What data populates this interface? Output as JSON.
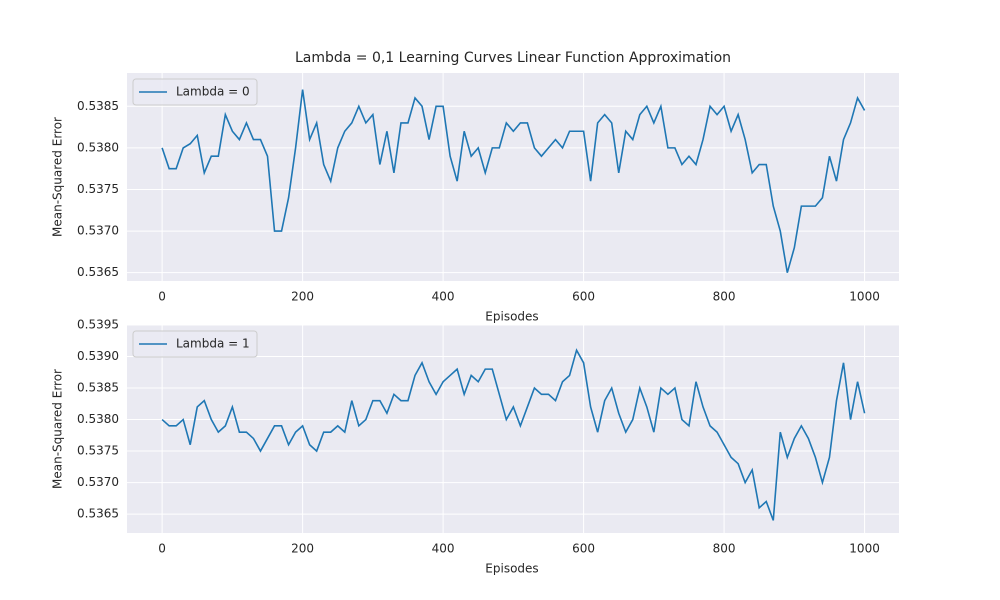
{
  "chart_data": [
    {
      "type": "line",
      "title": "Lambda = 0,1 Learning Curves Linear Function Approximation",
      "xlabel": "Episodes",
      "ylabel": "Mean-Squared Error",
      "grid": true,
      "legend": "upper left",
      "xlim": [
        -50,
        1049
      ],
      "ylim": [
        0.5364,
        0.5389
      ],
      "xticks": [
        0,
        200,
        400,
        600,
        800,
        1000
      ],
      "yticks": [
        0.5365,
        {
          "value": 0.537,
          "label": "0.5370"
        },
        0.5375,
        {
          "value": 0.538,
          "label": "0.5380"
        },
        0.5385
      ],
      "x": [
        0,
        10,
        20,
        30,
        40,
        50,
        60,
        70,
        80,
        90,
        100,
        110,
        120,
        130,
        140,
        150,
        160,
        170,
        180,
        190,
        200,
        210,
        220,
        230,
        240,
        250,
        260,
        270,
        280,
        290,
        300,
        310,
        320,
        330,
        340,
        350,
        360,
        370,
        380,
        390,
        400,
        410,
        420,
        430,
        440,
        450,
        460,
        470,
        480,
        490,
        500,
        510,
        520,
        530,
        540,
        550,
        560,
        570,
        580,
        590,
        600,
        610,
        620,
        630,
        640,
        650,
        660,
        670,
        680,
        690,
        700,
        710,
        720,
        730,
        740,
        750,
        760,
        770,
        780,
        790,
        800,
        810,
        820,
        830,
        840,
        850,
        860,
        870,
        880,
        890,
        900,
        910,
        920,
        930,
        940,
        950,
        960,
        970,
        980,
        990,
        1000
      ],
      "series": [
        {
          "name": "Lambda = 0",
          "color": "#1f77b4",
          "values": [
            0.538,
            0.53775,
            0.53775,
            0.538,
            0.53805,
            0.53815,
            0.5377,
            0.5379,
            0.5379,
            0.5384,
            0.5382,
            0.5381,
            0.5383,
            0.5381,
            0.5381,
            0.5379,
            0.537,
            0.537,
            0.5374,
            0.538,
            0.5387,
            0.5381,
            0.5383,
            0.5378,
            0.5376,
            0.538,
            0.5382,
            0.5383,
            0.5385,
            0.5383,
            0.5384,
            0.5378,
            0.5382,
            0.5377,
            0.5383,
            0.5383,
            0.5386,
            0.5385,
            0.5381,
            0.5385,
            0.5385,
            0.5379,
            0.5376,
            0.5382,
            0.5379,
            0.538,
            0.5377,
            0.538,
            0.538,
            0.5383,
            0.5382,
            0.5383,
            0.5383,
            0.538,
            0.5379,
            0.538,
            0.5381,
            0.538,
            0.5382,
            0.5382,
            0.5382,
            0.5376,
            0.5383,
            0.5384,
            0.5383,
            0.5377,
            0.5382,
            0.5381,
            0.5384,
            0.5385,
            0.5383,
            0.5385,
            0.538,
            0.538,
            0.5378,
            0.5379,
            0.5378,
            0.5381,
            0.5385,
            0.5384,
            0.5385,
            0.5382,
            0.5384,
            0.5381,
            0.5377,
            0.5378,
            0.5378,
            0.5373,
            0.537,
            0.5365,
            0.5368,
            0.5373,
            0.5373,
            0.5373,
            0.5374,
            0.5379,
            0.5376,
            0.5381,
            0.5383,
            0.5386,
            0.53845
          ]
        }
      ]
    },
    {
      "type": "line",
      "xlabel": "Episodes",
      "ylabel": "Mean-Squared Error",
      "grid": true,
      "legend": "upper left",
      "xlim": [
        -50,
        1049
      ],
      "ylim": [
        0.5362,
        0.5395
      ],
      "xticks": [
        0,
        200,
        400,
        600,
        800,
        1000
      ],
      "yticks": [
        0.5365,
        {
          "value": 0.537,
          "label": "0.5370"
        },
        0.5375,
        {
          "value": 0.538,
          "label": "0.5380"
        },
        0.5385,
        {
          "value": 0.539,
          "label": "0.5390"
        },
        0.5395
      ],
      "x": [
        0,
        10,
        20,
        30,
        40,
        50,
        60,
        70,
        80,
        90,
        100,
        110,
        120,
        130,
        140,
        150,
        160,
        170,
        180,
        190,
        200,
        210,
        220,
        230,
        240,
        250,
        260,
        270,
        280,
        290,
        300,
        310,
        320,
        330,
        340,
        350,
        360,
        370,
        380,
        390,
        400,
        410,
        420,
        430,
        440,
        450,
        460,
        470,
        480,
        490,
        500,
        510,
        520,
        530,
        540,
        550,
        560,
        570,
        580,
        590,
        600,
        610,
        620,
        630,
        640,
        650,
        660,
        670,
        680,
        690,
        700,
        710,
        720,
        730,
        740,
        750,
        760,
        770,
        780,
        790,
        800,
        810,
        820,
        830,
        840,
        850,
        860,
        870,
        880,
        890,
        900,
        910,
        920,
        930,
        940,
        950,
        960,
        970,
        980,
        990,
        1000
      ],
      "series": [
        {
          "name": "Lambda = 1",
          "color": "#1f77b4",
          "values": [
            0.538,
            0.5379,
            0.5379,
            0.538,
            0.5376,
            0.5382,
            0.5383,
            0.538,
            0.5378,
            0.5379,
            0.5382,
            0.5378,
            0.5378,
            0.5377,
            0.5375,
            0.5377,
            0.5379,
            0.5379,
            0.5376,
            0.5378,
            0.5379,
            0.5376,
            0.5375,
            0.5378,
            0.5378,
            0.5379,
            0.5378,
            0.5383,
            0.5379,
            0.538,
            0.5383,
            0.5383,
            0.5381,
            0.5384,
            0.5383,
            0.5383,
            0.5387,
            0.5389,
            0.5386,
            0.5384,
            0.5386,
            0.5387,
            0.5388,
            0.5384,
            0.5387,
            0.5386,
            0.5388,
            0.5388,
            0.5384,
            0.538,
            0.5382,
            0.5379,
            0.5382,
            0.5385,
            0.5384,
            0.5384,
            0.5383,
            0.5386,
            0.5387,
            0.5391,
            0.5389,
            0.5382,
            0.5378,
            0.5383,
            0.5385,
            0.5381,
            0.5378,
            0.538,
            0.5385,
            0.5382,
            0.5378,
            0.5385,
            0.5384,
            0.5385,
            0.538,
            0.5379,
            0.5386,
            0.5382,
            0.5379,
            0.5378,
            0.5376,
            0.5374,
            0.5373,
            0.537,
            0.5372,
            0.5366,
            0.5367,
            0.5364,
            0.5378,
            0.5374,
            0.5377,
            0.5379,
            0.5377,
            0.5374,
            0.537,
            0.5374,
            0.5383,
            0.5389,
            0.538,
            0.5386,
            0.5381
          ]
        }
      ]
    }
  ]
}
